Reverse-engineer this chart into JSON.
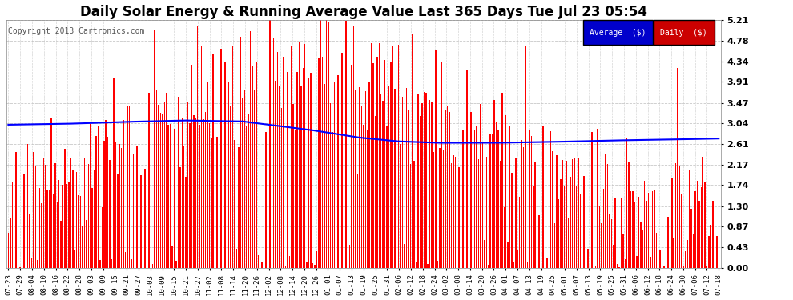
{
  "title": "Daily Solar Energy & Running Average Value Last 365 Days Tue Jul 23 05:54",
  "copyright": "Copyright 2013 Cartronics.com",
  "bar_color": "#ff0000",
  "avg_line_color": "#0000ff",
  "background_color": "#ffffff",
  "grid_color": "#bbbbbb",
  "ylim": [
    0,
    5.21
  ],
  "yticks": [
    0.0,
    0.43,
    0.87,
    1.3,
    1.74,
    2.17,
    2.61,
    3.04,
    3.47,
    3.91,
    4.34,
    4.78,
    5.21
  ],
  "legend_avg_label": "Average  ($)",
  "legend_daily_label": "Daily  ($)",
  "legend_avg_bg": "#0000cc",
  "legend_daily_bg": "#cc0000",
  "title_fontsize": 12,
  "n_days": 365,
  "xtick_labels": [
    "07-23",
    "07-29",
    "08-04",
    "08-10",
    "08-16",
    "08-22",
    "08-28",
    "09-03",
    "09-09",
    "09-15",
    "09-21",
    "09-27",
    "10-03",
    "10-09",
    "10-15",
    "10-21",
    "10-27",
    "11-02",
    "11-08",
    "11-14",
    "11-20",
    "11-26",
    "12-02",
    "12-08",
    "12-14",
    "12-20",
    "12-26",
    "01-01",
    "01-07",
    "01-13",
    "01-19",
    "01-25",
    "01-31",
    "02-06",
    "02-12",
    "02-18",
    "02-24",
    "03-02",
    "03-08",
    "03-14",
    "03-20",
    "03-26",
    "04-01",
    "04-07",
    "04-13",
    "04-19",
    "04-25",
    "05-01",
    "05-07",
    "05-13",
    "05-19",
    "05-25",
    "05-31",
    "06-06",
    "06-12",
    "06-18",
    "06-24",
    "06-30",
    "07-06",
    "07-12",
    "07-18"
  ],
  "avg_control_days": [
    0,
    30,
    60,
    90,
    120,
    155,
    180,
    200,
    220,
    250,
    280,
    310,
    340,
    364
  ],
  "avg_control_vals": [
    3.01,
    3.03,
    3.07,
    3.1,
    3.08,
    2.9,
    2.74,
    2.66,
    2.63,
    2.63,
    2.65,
    2.68,
    2.7,
    2.72
  ]
}
